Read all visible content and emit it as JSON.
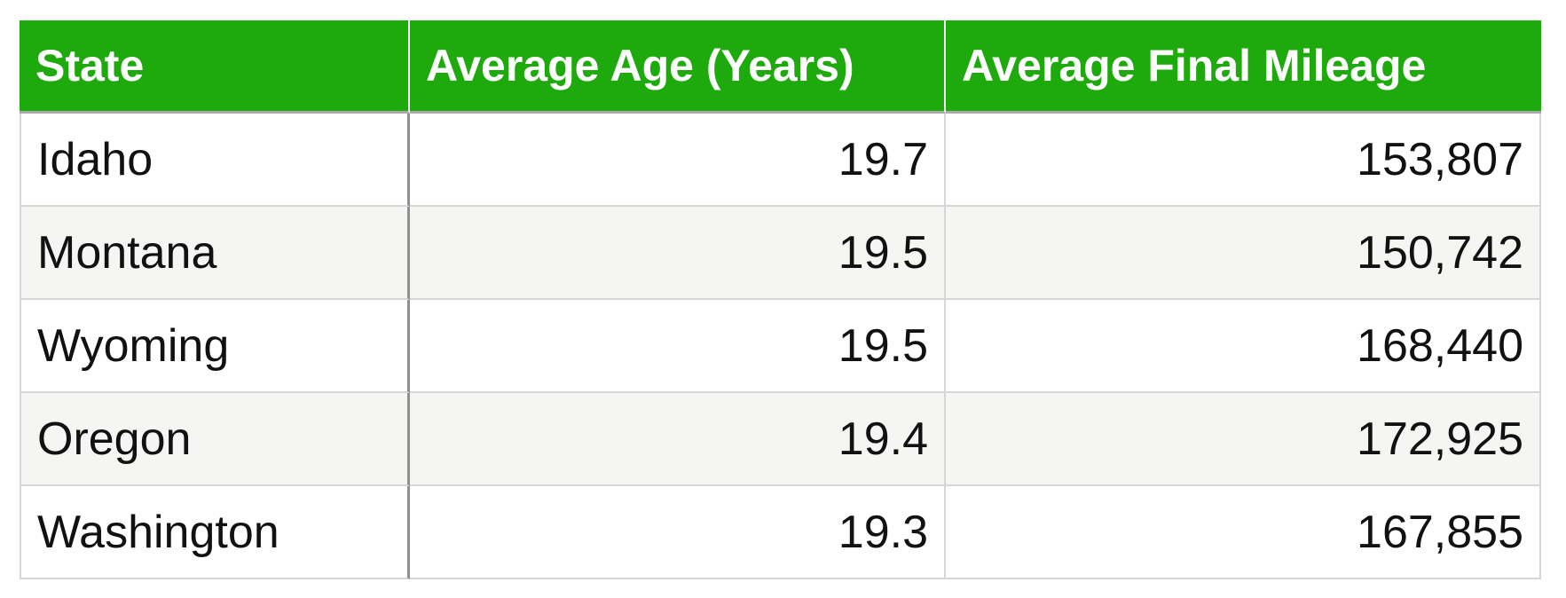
{
  "table": {
    "headers": [
      "State",
      "Average Age (Years)",
      "Average Final Mileage"
    ],
    "rows": [
      {
        "state": "Idaho",
        "age": "19.7",
        "mileage": "153,807"
      },
      {
        "state": "Montana",
        "age": "19.5",
        "mileage": "150,742"
      },
      {
        "state": "Wyoming",
        "age": "19.5",
        "mileage": "168,440"
      },
      {
        "state": "Oregon",
        "age": "19.4",
        "mileage": "172,925"
      },
      {
        "state": "Washington",
        "age": "19.3",
        "mileage": "167,855"
      }
    ]
  },
  "colors": {
    "header_background": "#1eaa0c",
    "header_text": "#ffffff",
    "alt_row_background": "#f5f5f3"
  }
}
